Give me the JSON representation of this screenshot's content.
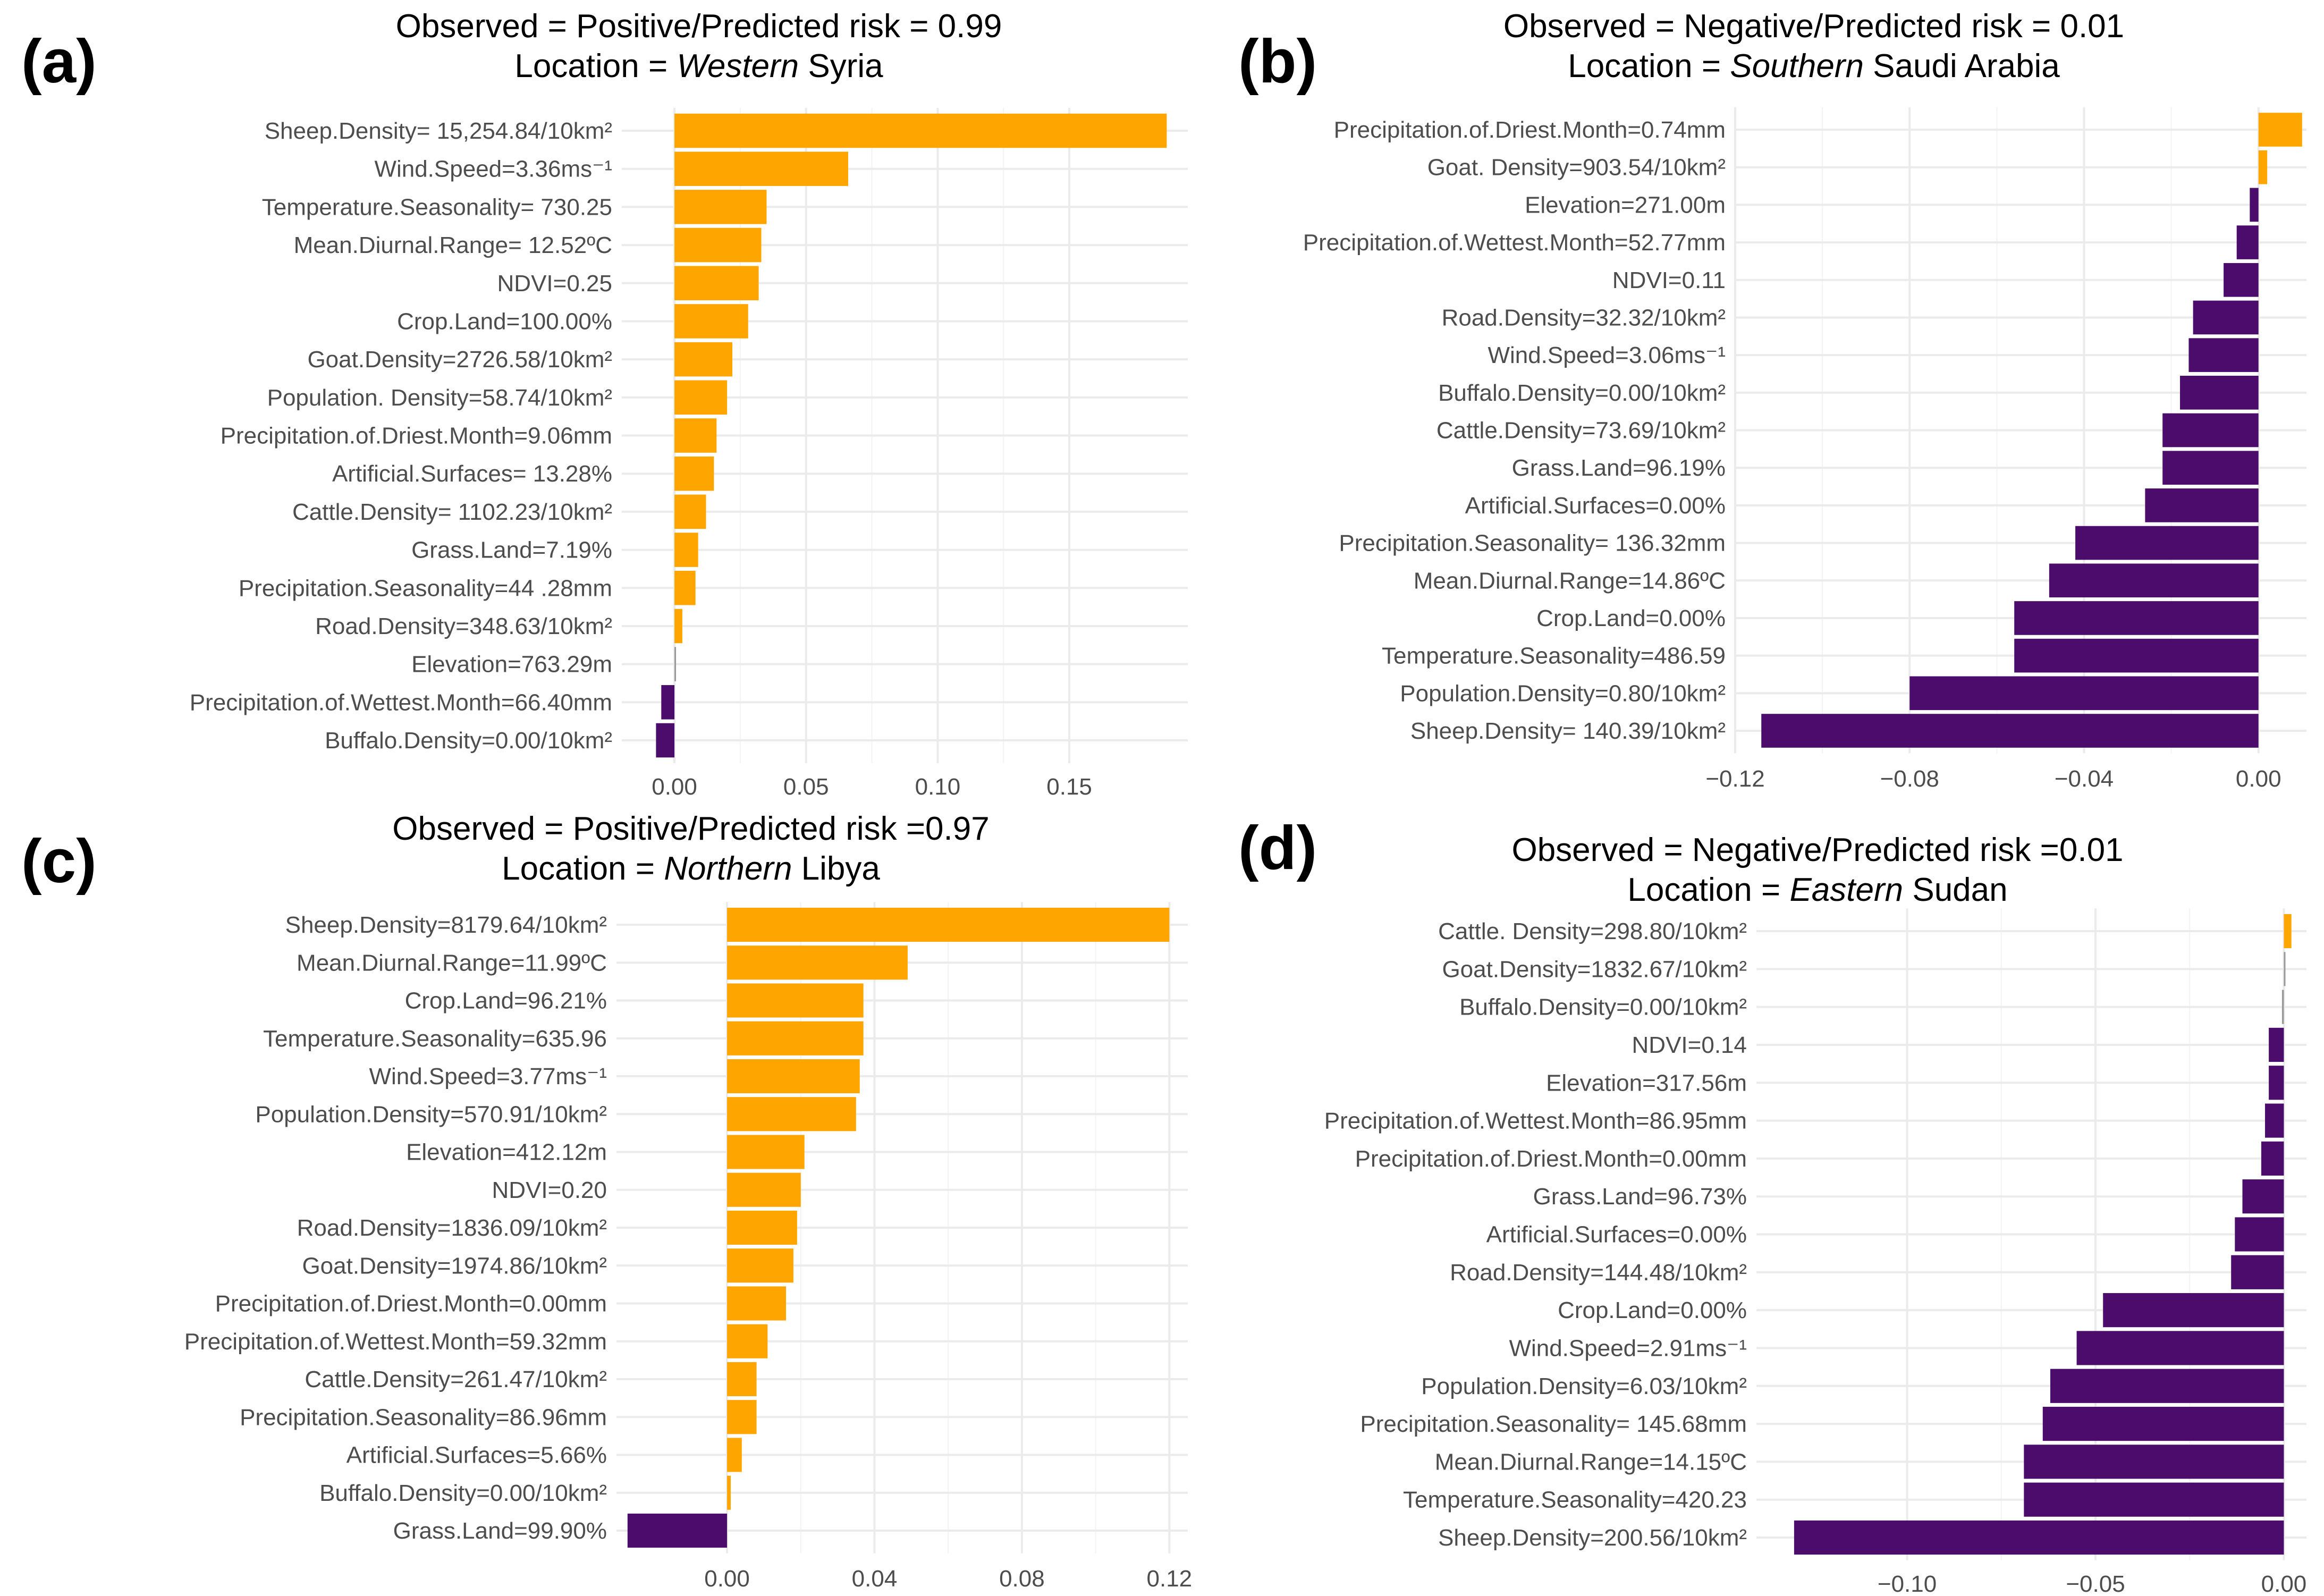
{
  "chart_data": [
    {
      "type": "bar",
      "orientation": "horizontal",
      "panel": "(a)",
      "title_line1": "Observed = Positive/Predicted risk = 0.99",
      "title_line2_prefix": "Location = ",
      "title_line2_italic": "Western",
      "title_line2_suffix": " Syria",
      "xlim": [
        -0.02,
        0.195
      ],
      "xticks": [
        0.0,
        0.05,
        0.1,
        0.15
      ],
      "xtick_labels": [
        "0.00",
        "0.05",
        "0.10",
        "0.15"
      ],
      "categories": [
        "Sheep.Density= 15,254.84/10km²",
        "Wind.Speed=3.36ms⁻¹",
        "Temperature.Seasonality= 730.25",
        "Mean.Diurnal.Range= 12.52ºC",
        "NDVI=0.25",
        "Crop.Land=100.00%",
        "Goat.Density=2726.58/10km²",
        "Population. Density=58.74/10km²",
        "Precipitation.of.Driest.Month=9.06mm",
        "Artificial.Surfaces= 13.28%",
        "Cattle.Density= 1102.23/10km²",
        "Grass.Land=7.19%",
        "Precipitation.Seasonality=44 .28mm",
        "Road.Density=348.63/10km²",
        "Elevation=763.29m",
        "Precipitation.of.Wettest.Month=66.40mm",
        "Buffalo.Density=0.00/10km²"
      ],
      "values": [
        0.187,
        0.066,
        0.035,
        0.033,
        0.032,
        0.028,
        0.022,
        0.02,
        0.016,
        0.015,
        0.012,
        0.009,
        0.008,
        0.003,
        0.0004,
        -0.005,
        -0.007
      ]
    },
    {
      "type": "bar",
      "orientation": "horizontal",
      "panel": "(b)",
      "title_line1": "Observed = Negative/Predicted risk = 0.01",
      "title_line2_prefix": "Location = ",
      "title_line2_italic": "Southern",
      "title_line2_suffix": " Saudi Arabia",
      "xlim": [
        -0.12,
        0.011
      ],
      "xticks": [
        -0.12,
        -0.08,
        -0.04,
        0.0
      ],
      "xtick_labels": [
        "−0.12",
        "−0.08",
        "−0.04",
        "0.00"
      ],
      "categories": [
        "Precipitation.of.Driest.Month=0.74mm",
        "Goat. Density=903.54/10km²",
        "Elevation=271.00m",
        "Precipitation.of.Wettest.Month=52.77mm",
        "NDVI=0.11",
        "Road.Density=32.32/10km²",
        "Wind.Speed=3.06ms⁻¹",
        "Buffalo.Density=0.00/10km²",
        "Cattle.Density=73.69/10km²",
        "Grass.Land=96.19%",
        "Artificial.Surfaces=0.00%",
        "Precipitation.Seasonality= 136.32mm",
        "Mean.Diurnal.Range=14.86ºC",
        "Crop.Land=0.00%",
        "Temperature.Seasonality=486.59",
        "Population.Density=0.80/10km²",
        "Sheep.Density= 140.39/10km²"
      ],
      "values": [
        0.01,
        0.002,
        -0.002,
        -0.005,
        -0.008,
        -0.015,
        -0.016,
        -0.018,
        -0.022,
        -0.022,
        -0.026,
        -0.042,
        -0.048,
        -0.056,
        -0.056,
        -0.08,
        -0.114
      ]
    },
    {
      "type": "bar",
      "orientation": "horizontal",
      "panel": "(c)",
      "title_line1": "Observed = Positive/Predicted risk =0.97",
      "title_line2_prefix": "Location = ",
      "title_line2_italic": "Northern",
      "title_line2_suffix": " Libya",
      "xlim": [
        -0.03,
        0.125
      ],
      "xticks": [
        0.0,
        0.04,
        0.08,
        0.12
      ],
      "xtick_labels": [
        "0.00",
        "0.04",
        "0.08",
        "0.12"
      ],
      "categories": [
        "Sheep.Density=8179.64/10km²",
        "Mean.Diurnal.Range=11.99ºC",
        "Crop.Land=96.21%",
        "Temperature.Seasonality=635.96",
        "Wind.Speed=3.77ms⁻¹",
        "Population.Density=570.91/10km²",
        "Elevation=412.12m",
        "NDVI=0.20",
        "Road.Density=1836.09/10km²",
        "Goat.Density=1974.86/10km²",
        "Precipitation.of.Driest.Month=0.00mm",
        "Precipitation.of.Wettest.Month=59.32mm",
        "Cattle.Density=261.47/10km²",
        "Precipitation.Seasonality=86.96mm",
        "Artificial.Surfaces=5.66%",
        "Buffalo.Density=0.00/10km²",
        "Grass.Land=99.90%"
      ],
      "values": [
        0.12,
        0.049,
        0.037,
        0.037,
        0.036,
        0.035,
        0.021,
        0.02,
        0.019,
        0.018,
        0.016,
        0.011,
        0.008,
        0.008,
        0.004,
        0.001,
        -0.027
      ]
    },
    {
      "type": "bar",
      "orientation": "horizontal",
      "panel": "(d)",
      "title_line1": "Observed = Negative/Predicted risk =0.01",
      "title_line2_prefix": "Location = ",
      "title_line2_italic": "Eastern",
      "title_line2_suffix": " Sudan",
      "xlim": [
        -0.14,
        0.006
      ],
      "xticks": [
        -0.1,
        -0.05,
        0.0
      ],
      "xtick_labels": [
        "−0.10",
        "−0.05",
        "0.00"
      ],
      "categories": [
        "Cattle. Density=298.80/10km²",
        "Goat.Density=1832.67/10km²",
        "Buffalo.Density=0.00/10km²",
        "NDVI=0.14",
        "Elevation=317.56m",
        "Precipitation.of.Wettest.Month=86.95mm",
        "Precipitation.of.Driest.Month=0.00mm",
        "Grass.Land=96.73%",
        "Artificial.Surfaces=0.00%",
        "Road.Density=144.48/10km²",
        "Crop.Land=0.00%",
        "Wind.Speed=2.91ms⁻¹",
        "Population.Density=6.03/10km²",
        "Precipitation.Seasonality= 145.68mm",
        "Mean.Diurnal.Range=14.15ºC",
        "Temperature.Seasonality=420.23",
        "Sheep.Density=200.56/10km²"
      ],
      "values": [
        0.002,
        0.0003,
        -0.0005,
        -0.004,
        -0.004,
        -0.005,
        -0.006,
        -0.011,
        -0.013,
        -0.014,
        -0.048,
        -0.055,
        -0.062,
        -0.064,
        -0.069,
        -0.069,
        -0.13
      ]
    }
  ],
  "colors": {
    "positive": "#FFA500",
    "negative": "#4B0C6B",
    "zero": "#999999"
  }
}
